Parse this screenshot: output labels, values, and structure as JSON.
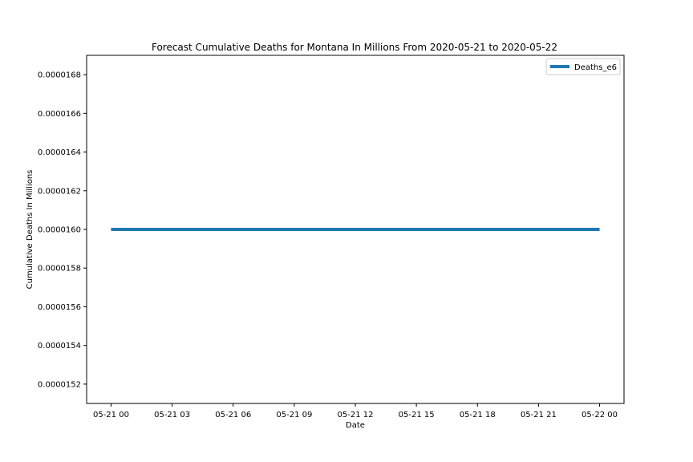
{
  "chart_data": {
    "type": "line",
    "title": "Forecast Cumulative Deaths for Montana In Millions From 2020-05-21 to 2020-05-22",
    "xlabel": "Date",
    "ylabel": "Cumulative Deaths In Millions",
    "x": [
      "2020-05-21 00:00",
      "2020-05-22 00:00"
    ],
    "series": [
      {
        "name": "Deaths_e6",
        "values": [
          1.6e-05,
          1.6e-05
        ],
        "color": "#1f77b4"
      }
    ],
    "x_ticks": [
      "05-21 00",
      "05-21 03",
      "05-21 06",
      "05-21 09",
      "05-21 12",
      "05-21 15",
      "05-21 18",
      "05-21 21",
      "05-22 00"
    ],
    "x_tick_hours": [
      0,
      3,
      6,
      9,
      12,
      15,
      18,
      21,
      24
    ],
    "xlim_hours": [
      -1.2,
      25.2
    ],
    "y_ticks": [
      "0.0000152",
      "0.0000154",
      "0.0000156",
      "0.0000158",
      "0.0000160",
      "0.0000162",
      "0.0000164",
      "0.0000166",
      "0.0000168"
    ],
    "y_tick_values": [
      1.52e-05,
      1.54e-05,
      1.56e-05,
      1.58e-05,
      1.6e-05,
      1.62e-05,
      1.64e-05,
      1.66e-05,
      1.68e-05
    ],
    "ylim": [
      1.51e-05,
      1.69e-05
    ],
    "grid": false,
    "legend_position": "top-right"
  }
}
